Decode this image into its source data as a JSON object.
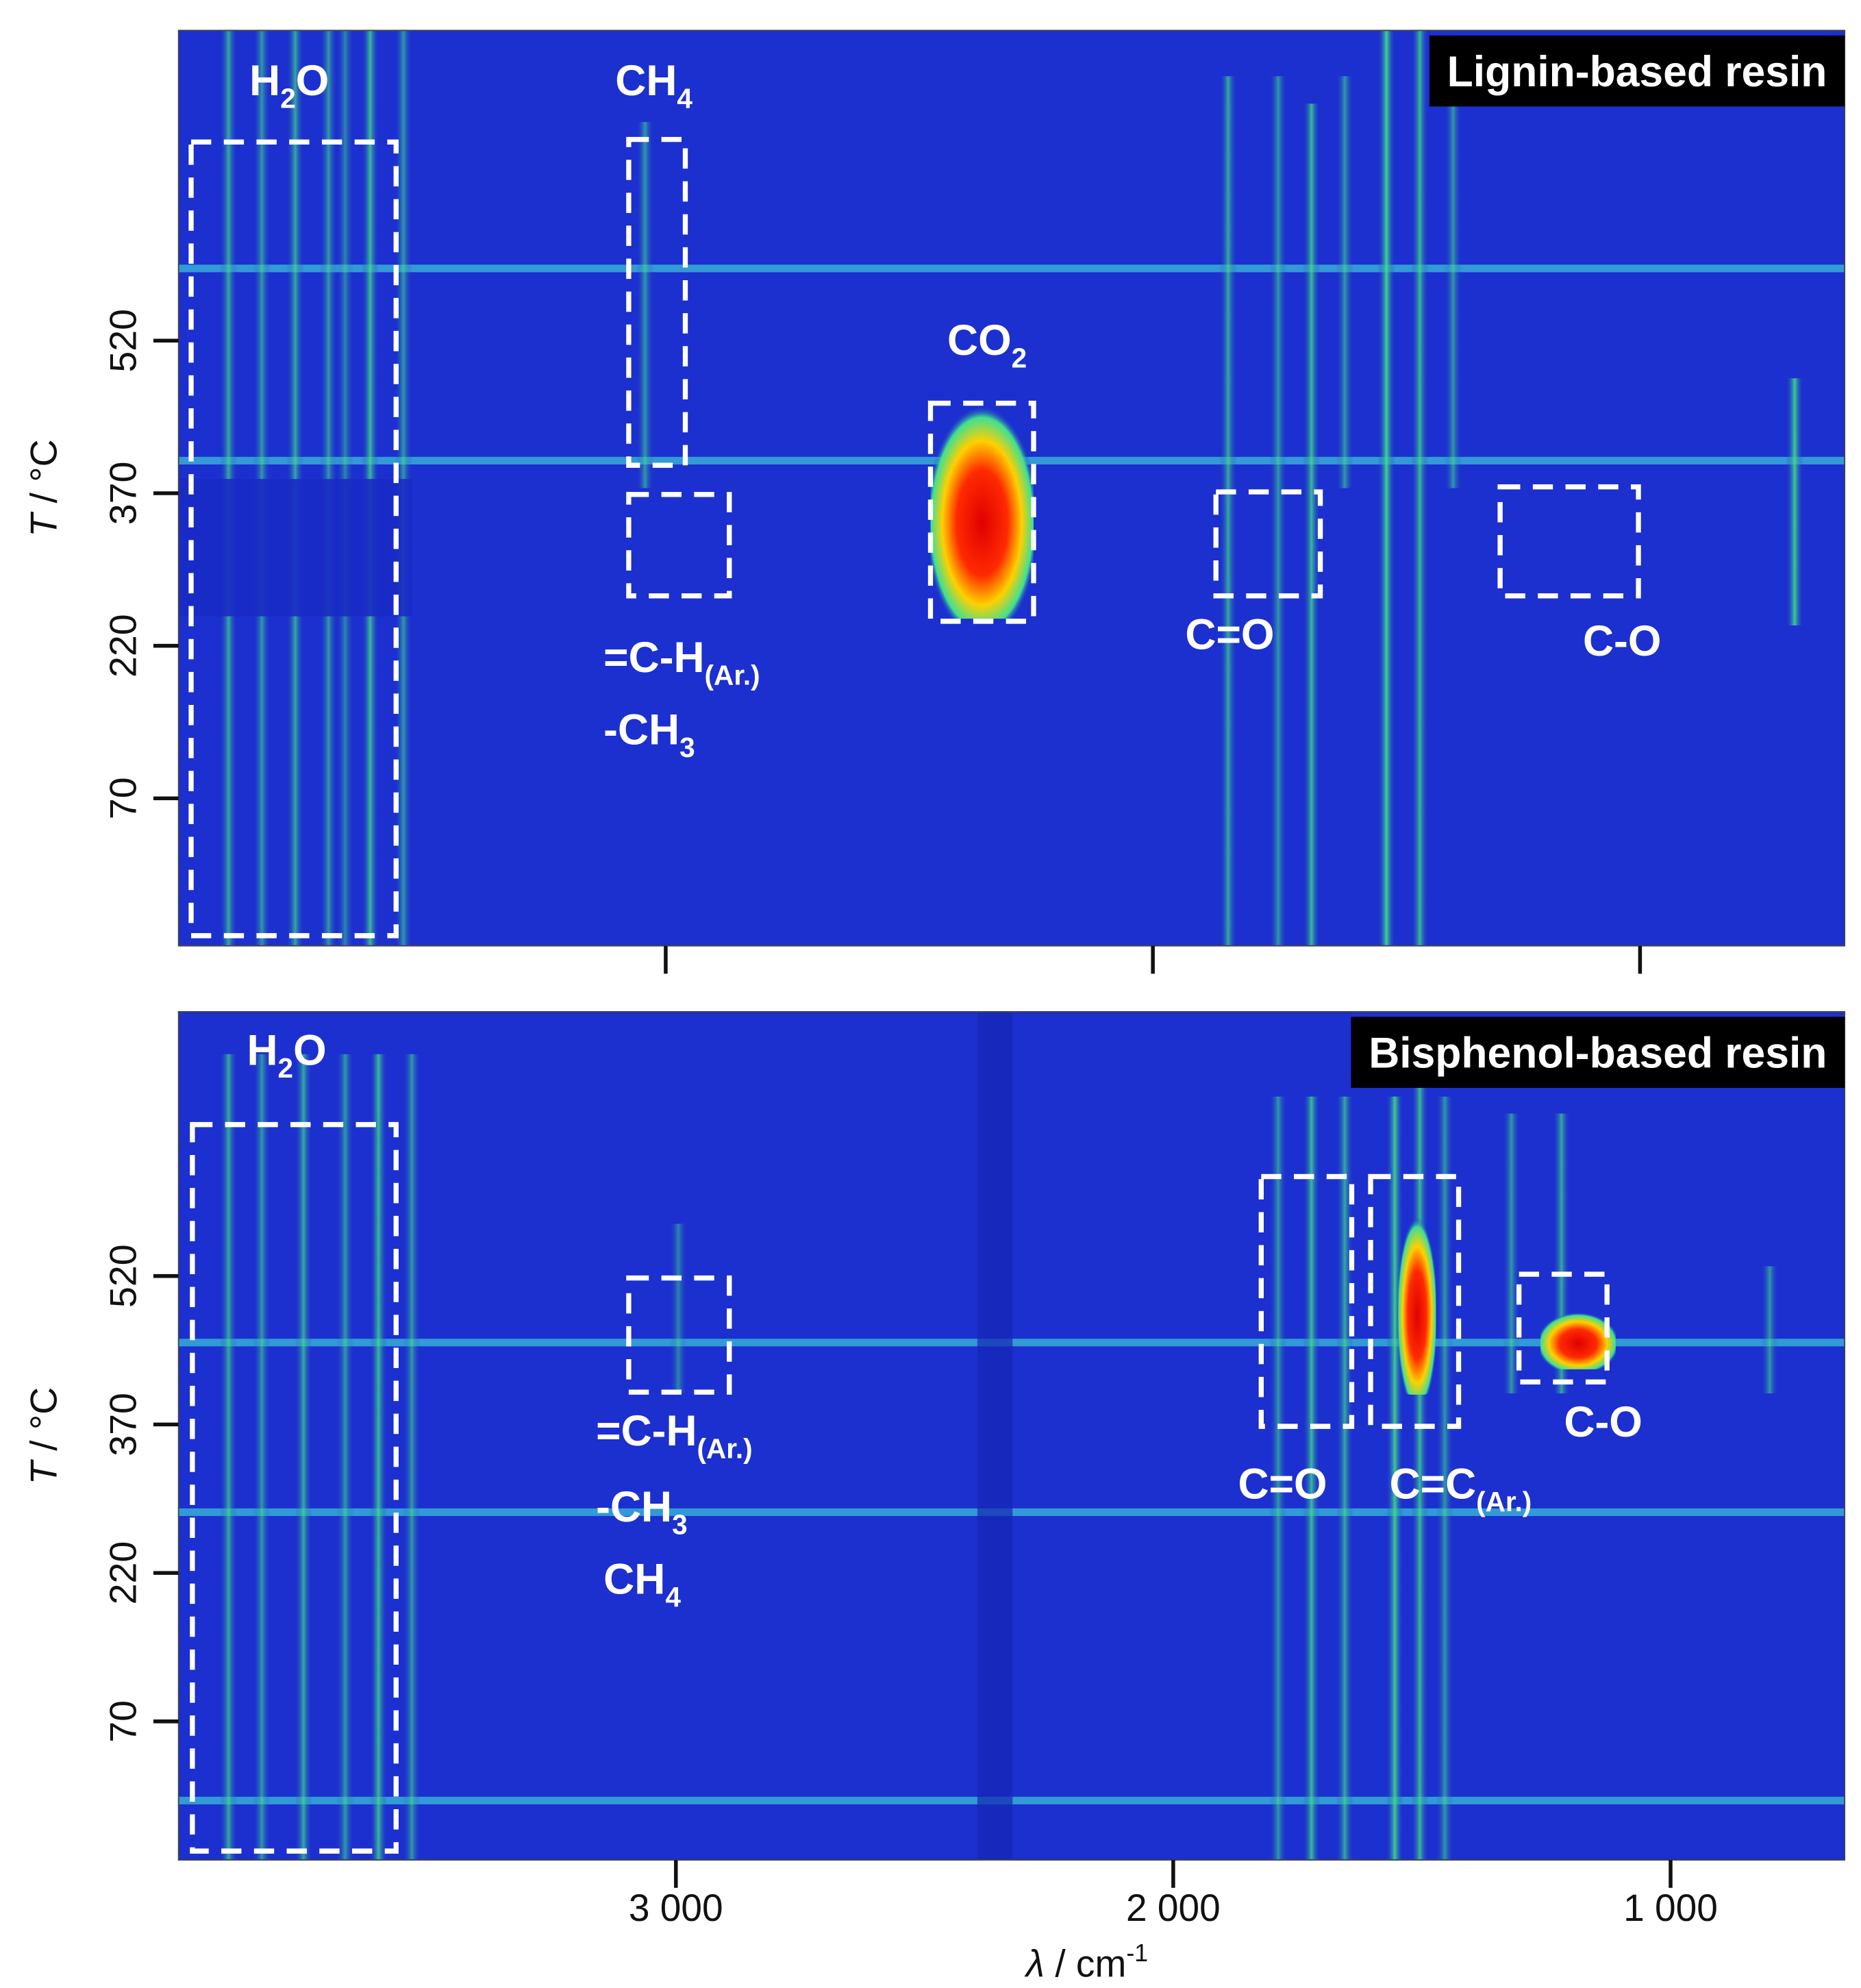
{
  "chart_data": [
    {
      "type": "heatmap",
      "panel_label": "Lignin-based resin",
      "xlim": [
        4000,
        580
      ],
      "xticks": [
        3000,
        2000,
        1000
      ],
      "ylim": [
        -75,
        825
      ],
      "yticks": [
        520,
        370,
        220,
        70
      ],
      "ylabel": {
        "symbol": "T",
        "unit": " / °C"
      },
      "annotations": [
        {
          "parts": [
            {
              "text": "H"
            },
            {
              "sub": "2"
            },
            {
              "text": "O"
            }
          ]
        },
        {
          "parts": [
            {
              "text": "CH"
            },
            {
              "sub": "4"
            }
          ]
        },
        {
          "parts": [
            {
              "text": "CO"
            },
            {
              "sub": "2"
            }
          ]
        },
        {
          "parts": [
            {
              "text": "=C-H"
            },
            {
              "sub": "(Ar.)"
            }
          ]
        },
        {
          "parts": [
            {
              "text": "-CH"
            },
            {
              "sub": "3"
            }
          ]
        },
        {
          "parts": [
            {
              "text": "C=O"
            }
          ]
        },
        {
          "parts": [
            {
              "text": "C-O"
            }
          ]
        }
      ]
    },
    {
      "type": "heatmap",
      "panel_label": "Bisphenol-based resin",
      "xlim": [
        4000,
        650
      ],
      "xticks": [
        {
          "value": 3000,
          "label": "3 000"
        },
        {
          "value": 2000,
          "label": "2 000"
        },
        {
          "value": 1000,
          "label": "1 000"
        }
      ],
      "ylim": [
        -70,
        787
      ],
      "yticks": [
        520,
        370,
        220,
        70
      ],
      "ylabel": {
        "symbol": "T",
        "unit": " / °C"
      },
      "xlabel": {
        "symbol": "λ",
        "unit": " / cm",
        "sup": "-1"
      },
      "annotations": [
        {
          "parts": [
            {
              "text": "H"
            },
            {
              "sub": "2"
            },
            {
              "text": "O"
            }
          ]
        },
        {
          "parts": [
            {
              "text": "=C-H"
            },
            {
              "sub": "(Ar.)"
            }
          ]
        },
        {
          "parts": [
            {
              "text": "-CH"
            },
            {
              "sub": "3"
            }
          ]
        },
        {
          "parts": [
            {
              "text": "CH"
            },
            {
              "sub": "4"
            }
          ]
        },
        {
          "parts": [
            {
              "text": "C=O"
            }
          ]
        },
        {
          "parts": [
            {
              "text": "C=C"
            },
            {
              "sub": "(Ar.)"
            }
          ]
        },
        {
          "parts": [
            {
              "text": "C-O"
            }
          ]
        }
      ]
    }
  ]
}
